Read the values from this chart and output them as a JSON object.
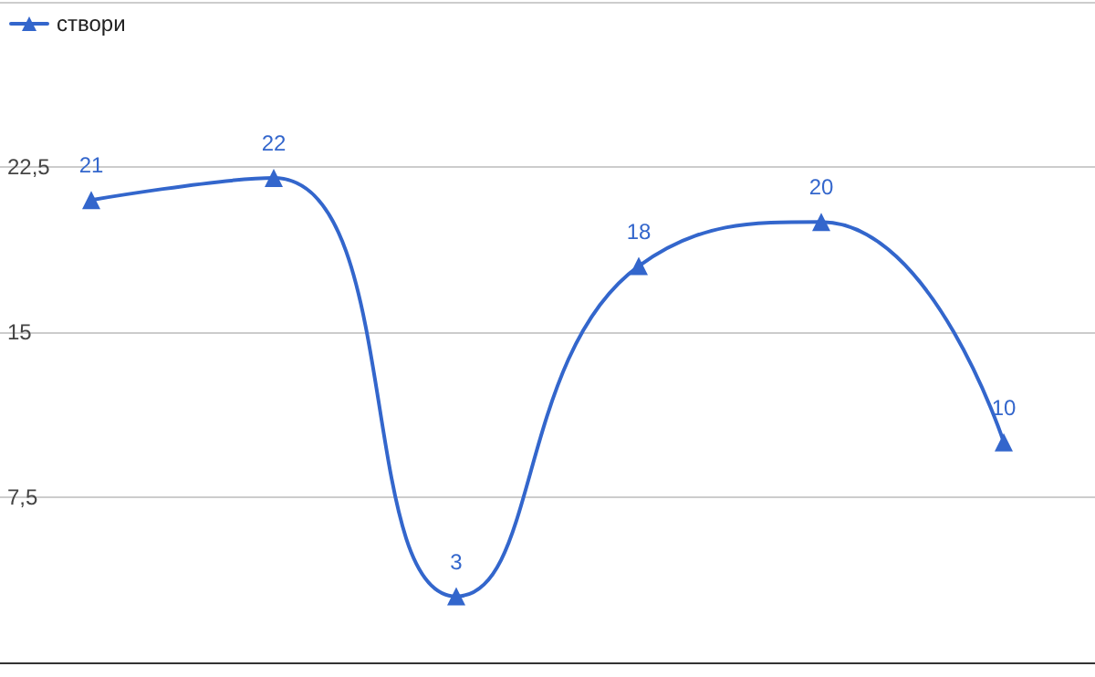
{
  "chart_data": {
    "type": "line",
    "categories": [
      null,
      null,
      null,
      null,
      null,
      null
    ],
    "series": [
      {
        "name": "створи",
        "color": "#3366cc",
        "values": [
          21,
          22,
          3,
          18,
          20,
          10
        ]
      }
    ],
    "ylim": [
      0,
      30
    ],
    "yticks": [
      {
        "value": 0,
        "label": null
      },
      {
        "value": 7.5,
        "label": "7,5"
      },
      {
        "value": 15,
        "label": "15"
      },
      {
        "value": 22.5,
        "label": "22,5"
      },
      {
        "value": 30,
        "label": null
      }
    ],
    "grid": "y",
    "legend": "top left",
    "marker": "triangle",
    "line_style": "solid",
    "data_labels": true
  }
}
